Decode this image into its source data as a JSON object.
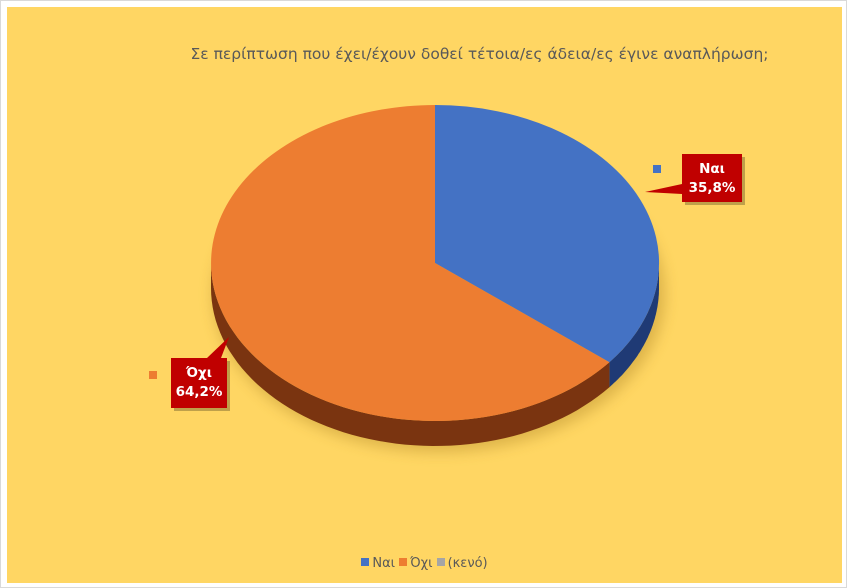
{
  "chart_data": {
    "type": "pie",
    "title": "Σε περίπτωση που έχει/έχουν δοθεί τέτοια/ες άδεια/ες έγινε αναπλήρωση;",
    "slices": [
      {
        "label": "Ναι",
        "value": 35.8,
        "value_label": "35,8%",
        "color": "#4472c4",
        "side_color": "#1f3a75"
      },
      {
        "label": "Όχι",
        "value": 64.2,
        "value_label": "64,2%",
        "color": "#ed7d31",
        "side_color": "#7a3410"
      },
      {
        "label": "(κενό)",
        "value": 0,
        "value_label": "",
        "color": "#a5a5a5",
        "side_color": "#6b6b6b"
      }
    ],
    "legend": [
      "Ναι",
      "Όχι",
      "(κενό)"
    ],
    "legend_position": "bottom",
    "data_label_color": "#c00000",
    "background_color": "#ffd663"
  }
}
